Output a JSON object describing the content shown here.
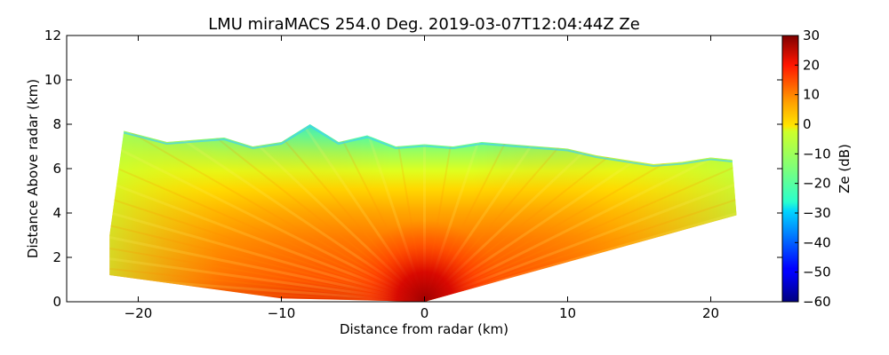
{
  "chart_data": {
    "type": "heatmap",
    "title": "LMU miraMACS 254.0 Deg. 2019-03-07T12:04:44Z  Ze",
    "xlabel": "Distance from radar (km)",
    "ylabel": "Distance Above radar  (km)",
    "xlim": [
      -25,
      25
    ],
    "ylim": [
      0,
      12
    ],
    "xticks": [
      -20,
      -10,
      0,
      10,
      20
    ],
    "xtick_labels": [
      "−20",
      "−10",
      "0",
      "10",
      "20"
    ],
    "yticks": [
      0,
      2,
      4,
      6,
      8,
      10,
      12
    ],
    "ytick_labels": [
      "0",
      "2",
      "4",
      "6",
      "8",
      "10",
      "12"
    ],
    "colorbar": {
      "label": "Ze (dB)",
      "min": -60,
      "max": 30,
      "colormap": "jet",
      "ticks": [
        30,
        20,
        10,
        0,
        -10,
        -20,
        -30,
        -40,
        -50,
        -60
      ],
      "tick_labels": [
        "30",
        "20",
        "10",
        "0",
        "−10",
        "−20",
        "−30",
        "−40",
        "−50",
        "−60"
      ]
    },
    "echo_region": {
      "description": "RHI scan sector of radar reflectivity",
      "x_range_km": [
        -22,
        21.8
      ],
      "cloud_top_km": [
        [
          -21,
          7.7
        ],
        [
          -18,
          7.2
        ],
        [
          -14,
          7.4
        ],
        [
          -12,
          7.0
        ],
        [
          -10,
          7.2
        ],
        [
          -8,
          8.0
        ],
        [
          -6,
          7.2
        ],
        [
          -4,
          7.5
        ],
        [
          -2,
          7.0
        ],
        [
          0,
          7.1
        ],
        [
          2,
          7.0
        ],
        [
          4,
          7.2
        ],
        [
          6,
          7.1
        ],
        [
          8,
          7.0
        ],
        [
          10,
          6.9
        ],
        [
          12,
          6.6
        ],
        [
          14,
          6.4
        ],
        [
          16,
          6.2
        ],
        [
          18,
          6.3
        ],
        [
          20,
          6.5
        ],
        [
          21.5,
          6.4
        ]
      ],
      "near_radar_max_dBZ": 30,
      "core_dBZ": 15,
      "upper_layer_dBZ": -5,
      "cloud_top_dBZ": -25
    }
  }
}
